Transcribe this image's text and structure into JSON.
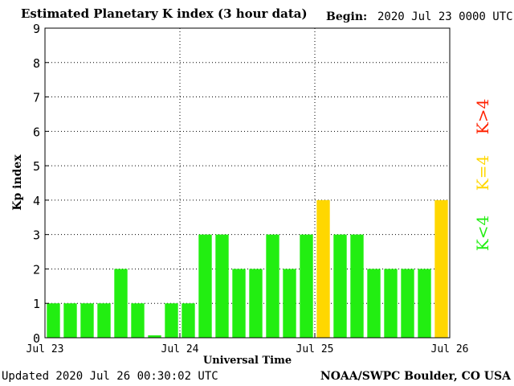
{
  "header": {
    "title": "Estimated Planetary K index (3 hour data)",
    "begin_label": "Begin:",
    "begin_value": "2020 Jul 23 0000 UTC"
  },
  "footer": {
    "updated": "Updated 2020 Jul 26 00:30:02 UTC",
    "credit": "NOAA/SWPC Boulder, CO USA"
  },
  "legend": {
    "placement": "right",
    "items": [
      {
        "label": "K<4",
        "color": "#22ee11"
      },
      {
        "label": "K=4",
        "color": "#ffd700"
      },
      {
        "label": "K>4",
        "color": "#ff2200"
      }
    ]
  },
  "chart_data": {
    "type": "bar",
    "xlabel": "Universal Time",
    "ylabel": "Kp index",
    "ylim": [
      0,
      9
    ],
    "yticks": [
      0,
      1,
      2,
      3,
      4,
      5,
      6,
      7,
      8,
      9
    ],
    "grid": "dotted",
    "x_tick_labels": [
      "Jul 23",
      "Jul 24",
      "Jul 25",
      "Jul 26"
    ],
    "interval_hours": 3,
    "values": [
      1,
      1,
      1,
      1,
      2,
      1,
      0.07,
      1,
      1,
      3,
      3,
      2,
      2,
      3,
      2,
      3,
      4,
      3,
      3,
      2,
      2,
      2,
      2,
      4
    ],
    "colors": {
      "below": "#22ee11",
      "equal": "#ffd700",
      "above": "#ff2200"
    }
  }
}
